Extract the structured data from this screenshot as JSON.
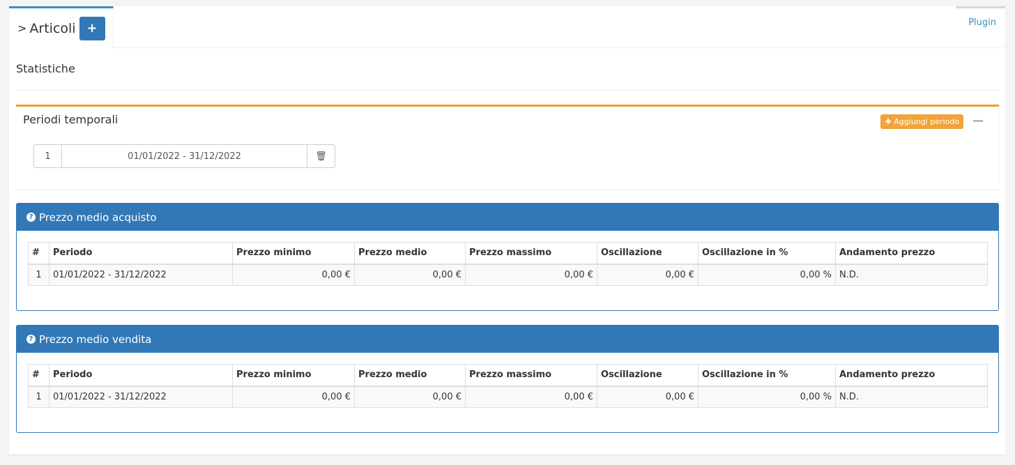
{
  "tabs": {
    "active": "Articoli",
    "add_icon": "plus-icon",
    "plugin": "Plugin"
  },
  "section_title": "Statistiche",
  "periodi": {
    "title": "Periodi temporali",
    "add_label": "Aggiungi periodo",
    "collapse_icon": "minus-icon",
    "items": [
      {
        "num": "1",
        "value": "01/01/2022 - 31/12/2022"
      }
    ]
  },
  "columns": [
    "#",
    "Periodo",
    "Prezzo minimo",
    "Prezzo medio",
    "Prezzo massimo",
    "Oscillazione",
    "Oscillazione in %",
    "Andamento prezzo"
  ],
  "acquisto": {
    "title": "Prezzo medio acquisto",
    "rows": [
      [
        "1",
        "01/01/2022 - 31/12/2022",
        "0,00 €",
        "0,00 €",
        "0,00 €",
        "0,00 €",
        "0,00 %",
        "N.D."
      ]
    ]
  },
  "vendita": {
    "title": "Prezzo medio vendita",
    "rows": [
      [
        "1",
        "01/01/2022 - 31/12/2022",
        "0,00 €",
        "0,00 €",
        "0,00 €",
        "0,00 €",
        "0,00 %",
        "N.D."
      ]
    ]
  },
  "colors": {
    "primary": "#3278b7",
    "warning": "#f2a33a"
  }
}
